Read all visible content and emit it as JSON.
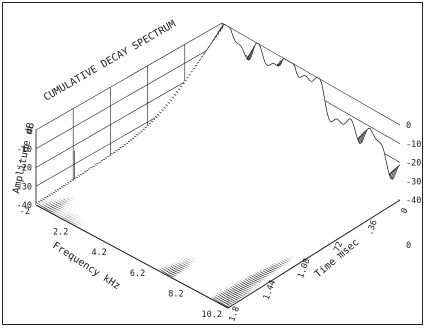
{
  "chart_data": {
    "type": "area",
    "title": "CUMULATIVE DECAY SPECTRUM",
    "xlabel": "Frequency kHz",
    "ylabel": "Time msec",
    "zlabel": "Amplitude dB",
    "x_ticks": [
      "-2",
      "2.2",
      "4.2",
      "6.2",
      "8.2",
      "10.2"
    ],
    "x_range": [
      -2,
      10.2
    ],
    "time_ticks": [
      "1.8",
      "1.44",
      "1.08",
      ".72",
      ".36",
      "0"
    ],
    "time_range": [
      0,
      1.8
    ],
    "z_ticks_left": [
      "0",
      "-10",
      "-20",
      "-30",
      "-40"
    ],
    "z_ticks_right": [
      "0",
      "-10",
      "-20",
      "-30",
      "-40",
      "0"
    ],
    "z_range": [
      -40,
      0
    ],
    "slices": 90,
    "grid": true,
    "colors": {
      "line": "#1a1a1a",
      "paper": "#ffffff"
    }
  }
}
